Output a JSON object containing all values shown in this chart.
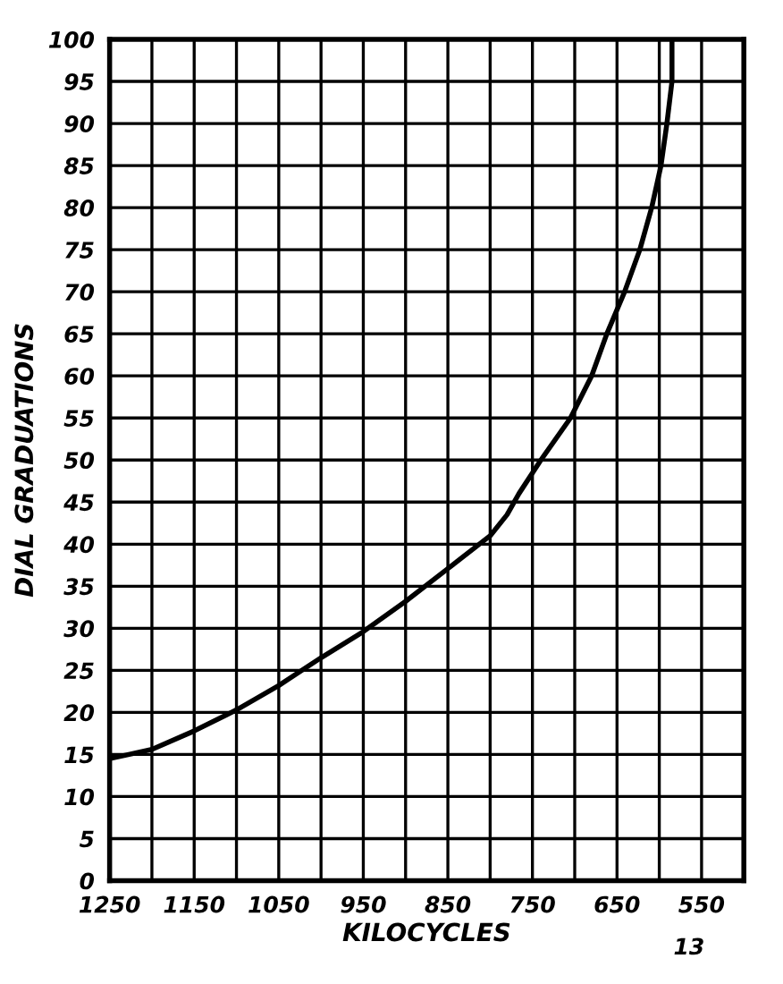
{
  "chart_data": {
    "type": "line",
    "xlabel": "KILOCYCLES",
    "ylabel": "DIAL GRADUATIONS",
    "annotations": [
      "13"
    ],
    "x": [
      1250,
      1200,
      1150,
      1100,
      1050,
      1000,
      950,
      900,
      850,
      800,
      780,
      766,
      740,
      705,
      680,
      662,
      641,
      623,
      609,
      598,
      591,
      585,
      585
    ],
    "series": [
      {
        "color": "#000000",
        "values": [
          14.5,
          15.6,
          17.8,
          20.3,
          23.2,
          26.5,
          29.6,
          33.2,
          37.1,
          41,
          43.5,
          46,
          50,
          55,
          60,
          65,
          70,
          75,
          80,
          85,
          90,
          95,
          100
        ]
      }
    ],
    "xlim": [
      1250,
      500
    ],
    "ylim": [
      0,
      100
    ],
    "xticks": [
      1250,
      {
        "value": 1200,
        "label": null
      },
      1150,
      {
        "value": 1100,
        "label": null
      },
      1050,
      {
        "value": 1000,
        "label": null
      },
      950,
      {
        "value": 900,
        "label": null
      },
      850,
      {
        "value": 800,
        "label": null
      },
      750,
      {
        "value": 700,
        "label": null
      },
      650,
      {
        "value": 600,
        "label": null
      },
      550,
      {
        "value": 500,
        "label": null
      }
    ],
    "yticks": [
      0,
      5,
      10,
      15,
      20,
      25,
      30,
      35,
      40,
      45,
      50,
      55,
      60,
      65,
      70,
      75,
      80,
      85,
      90,
      95,
      100
    ],
    "grid": true,
    "marker": "none",
    "line_style": "solid"
  }
}
